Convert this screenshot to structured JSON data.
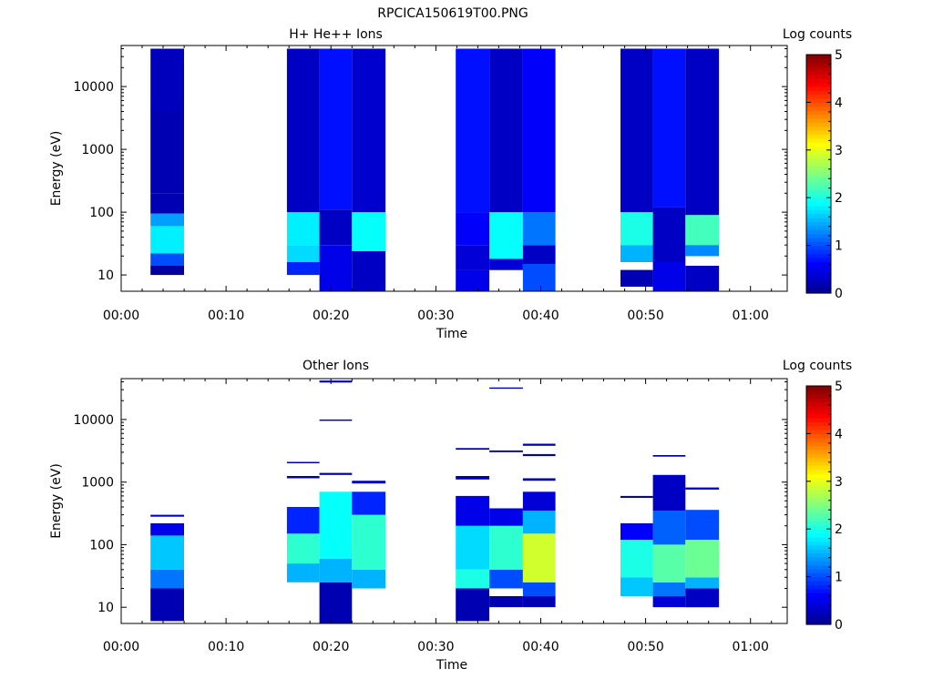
{
  "figure_title": "RPCICA150619T00.PNG",
  "colors": {
    "colormap": [
      "#00008f",
      "#0000ff",
      "#0080ff",
      "#00ffff",
      "#80ff80",
      "#ffff00",
      "#ff8000",
      "#ff0000",
      "#800000"
    ]
  },
  "chart_data": [
    {
      "type": "heatmap",
      "title": "H+ He++ Ions",
      "xlabel": "Time",
      "ylabel": "Energy (eV)",
      "x_ticks": [
        "00:00",
        "00:10",
        "00:20",
        "00:30",
        "00:40",
        "00:50",
        "01:00"
      ],
      "xlim_minutes": [
        0,
        63.5
      ],
      "yscale": "log",
      "ylim": [
        5.5,
        45000
      ],
      "y_ticks": [
        "10",
        "100",
        "1000",
        "10000"
      ],
      "colorbar": {
        "label": "Log counts",
        "range": [
          0,
          5
        ],
        "ticks": [
          "0",
          "1",
          "2",
          "3",
          "4",
          "5"
        ]
      },
      "columns": [
        {
          "t_start": 2.8,
          "t_end": 6.0,
          "bands": [
            {
              "e_min": 10,
              "e_max": 14,
              "log_counts": 0.1
            },
            {
              "e_min": 14,
              "e_max": 22,
              "log_counts": 1.0
            },
            {
              "e_min": 22,
              "e_max": 60,
              "log_counts": 1.8
            },
            {
              "e_min": 60,
              "e_max": 95,
              "log_counts": 1.4
            },
            {
              "e_min": 95,
              "e_max": 200,
              "log_counts": 0.2
            },
            {
              "e_min": 200,
              "e_max": 4000,
              "log_counts": 0.2
            },
            {
              "e_min": 4000,
              "e_max": 40000,
              "log_counts": 0.25
            }
          ]
        },
        {
          "t_start": 15.8,
          "t_end": 18.9,
          "bands": [
            {
              "e_min": 10,
              "e_max": 16,
              "log_counts": 0.8
            },
            {
              "e_min": 16,
              "e_max": 30,
              "log_counts": 1.7
            },
            {
              "e_min": 30,
              "e_max": 100,
              "log_counts": 1.8
            },
            {
              "e_min": 100,
              "e_max": 40000,
              "log_counts": 0.3
            }
          ]
        },
        {
          "t_start": 18.9,
          "t_end": 22.0,
          "bands": [
            {
              "e_min": 5.5,
              "e_max": 30,
              "log_counts": 0.5
            },
            {
              "e_min": 30,
              "e_max": 110,
              "log_counts": 0.3
            },
            {
              "e_min": 110,
              "e_max": 40000,
              "log_counts": 0.7
            }
          ]
        },
        {
          "t_start": 22.0,
          "t_end": 25.2,
          "bands": [
            {
              "e_min": 5.5,
              "e_max": 24,
              "log_counts": 0.3
            },
            {
              "e_min": 24,
              "e_max": 100,
              "log_counts": 1.9
            },
            {
              "e_min": 100,
              "e_max": 40000,
              "log_counts": 0.35
            }
          ]
        },
        {
          "t_start": 31.9,
          "t_end": 35.1,
          "bands": [
            {
              "e_min": 5.5,
              "e_max": 12,
              "log_counts": 0.5
            },
            {
              "e_min": 12,
              "e_max": 30,
              "log_counts": 0.4
            },
            {
              "e_min": 30,
              "e_max": 100,
              "log_counts": 0.6
            },
            {
              "e_min": 100,
              "e_max": 40000,
              "log_counts": 0.7
            }
          ]
        },
        {
          "t_start": 35.1,
          "t_end": 38.3,
          "bands": [
            {
              "e_min": 12,
              "e_max": 18,
              "log_counts": 0.4
            },
            {
              "e_min": 18,
              "e_max": 100,
              "log_counts": 1.9
            },
            {
              "e_min": 100,
              "e_max": 40000,
              "log_counts": 0.3
            }
          ]
        },
        {
          "t_start": 38.3,
          "t_end": 41.4,
          "bands": [
            {
              "e_min": 5.5,
              "e_max": 15,
              "log_counts": 1.0
            },
            {
              "e_min": 15,
              "e_max": 30,
              "log_counts": 0.3
            },
            {
              "e_min": 30,
              "e_max": 100,
              "log_counts": 1.2
            },
            {
              "e_min": 100,
              "e_max": 40000,
              "log_counts": 0.6
            }
          ]
        },
        {
          "t_start": 47.6,
          "t_end": 50.7,
          "bands": [
            {
              "e_min": 6.5,
              "e_max": 12,
              "log_counts": 0.2
            },
            {
              "e_min": 16,
              "e_max": 30,
              "log_counts": 1.5
            },
            {
              "e_min": 30,
              "e_max": 100,
              "log_counts": 2.0
            },
            {
              "e_min": 100,
              "e_max": 40000,
              "log_counts": 0.3
            }
          ]
        },
        {
          "t_start": 50.7,
          "t_end": 53.8,
          "bands": [
            {
              "e_min": 5.5,
              "e_max": 16,
              "log_counts": 0.5
            },
            {
              "e_min": 16,
              "e_max": 120,
              "log_counts": 0.3
            },
            {
              "e_min": 120,
              "e_max": 40000,
              "log_counts": 0.7
            }
          ]
        },
        {
          "t_start": 53.8,
          "t_end": 57.0,
          "bands": [
            {
              "e_min": 5.5,
              "e_max": 14,
              "log_counts": 0.3
            },
            {
              "e_min": 20,
              "e_max": 30,
              "log_counts": 1.3
            },
            {
              "e_min": 30,
              "e_max": 90,
              "log_counts": 2.2
            },
            {
              "e_min": 90,
              "e_max": 40000,
              "log_counts": 0.3
            }
          ]
        }
      ]
    },
    {
      "type": "heatmap",
      "title": "Other Ions",
      "xlabel": "Time",
      "ylabel": "Energy (eV)",
      "x_ticks": [
        "00:00",
        "00:10",
        "00:20",
        "00:30",
        "00:40",
        "00:50",
        "01:00"
      ],
      "xlim_minutes": [
        0,
        63.5
      ],
      "yscale": "log",
      "ylim": [
        5.5,
        45000
      ],
      "y_ticks": [
        "10",
        "100",
        "1000",
        "10000"
      ],
      "colorbar": {
        "label": "Log counts",
        "range": [
          0,
          5
        ],
        "ticks": [
          "0",
          "1",
          "2",
          "3",
          "4",
          "5"
        ]
      },
      "columns": [
        {
          "t_start": 2.8,
          "t_end": 6.0,
          "bands": [
            {
              "e_min": 6,
              "e_max": 20,
              "log_counts": 0.2
            },
            {
              "e_min": 20,
              "e_max": 40,
              "log_counts": 1.2
            },
            {
              "e_min": 40,
              "e_max": 140,
              "log_counts": 1.6
            },
            {
              "e_min": 140,
              "e_max": 220,
              "log_counts": 0.5
            },
            {
              "e_min": 280,
              "e_max": 300,
              "log_counts": 0.3
            }
          ]
        },
        {
          "t_start": 15.8,
          "t_end": 18.9,
          "bands": [
            {
              "e_min": 25,
              "e_max": 50,
              "log_counts": 1.5
            },
            {
              "e_min": 50,
              "e_max": 150,
              "log_counts": 2.1
            },
            {
              "e_min": 150,
              "e_max": 400,
              "log_counts": 0.8
            },
            {
              "e_min": 1150,
              "e_max": 1250,
              "log_counts": 0.2
            },
            {
              "e_min": 2000,
              "e_max": 2100,
              "log_counts": 0.2
            }
          ]
        },
        {
          "t_start": 18.9,
          "t_end": 22.0,
          "bands": [
            {
              "e_min": 5.5,
              "e_max": 25,
              "log_counts": 0.2
            },
            {
              "e_min": 25,
              "e_max": 60,
              "log_counts": 1.5
            },
            {
              "e_min": 60,
              "e_max": 700,
              "log_counts": 1.9
            },
            {
              "e_min": 1300,
              "e_max": 1400,
              "log_counts": 0.2
            },
            {
              "e_min": 9500,
              "e_max": 10000,
              "log_counts": 0.2
            },
            {
              "e_min": 39000,
              "e_max": 42000,
              "log_counts": 0.2
            }
          ]
        },
        {
          "t_start": 22.0,
          "t_end": 25.2,
          "bands": [
            {
              "e_min": 20,
              "e_max": 40,
              "log_counts": 1.5
            },
            {
              "e_min": 40,
              "e_max": 300,
              "log_counts": 2.1
            },
            {
              "e_min": 300,
              "e_max": 700,
              "log_counts": 0.8
            },
            {
              "e_min": 950,
              "e_max": 1050,
              "log_counts": 0.3
            }
          ]
        },
        {
          "t_start": 31.9,
          "t_end": 35.1,
          "bands": [
            {
              "e_min": 6,
              "e_max": 20,
              "log_counts": 0.2
            },
            {
              "e_min": 20,
              "e_max": 40,
              "log_counts": 2.0
            },
            {
              "e_min": 40,
              "e_max": 200,
              "log_counts": 1.7
            },
            {
              "e_min": 200,
              "e_max": 600,
              "log_counts": 0.5
            },
            {
              "e_min": 1100,
              "e_max": 1250,
              "log_counts": 0.2
            },
            {
              "e_min": 3300,
              "e_max": 3500,
              "log_counts": 0.2
            }
          ]
        },
        {
          "t_start": 35.1,
          "t_end": 38.3,
          "bands": [
            {
              "e_min": 10,
              "e_max": 15,
              "log_counts": 0.2
            },
            {
              "e_min": 20,
              "e_max": 40,
              "log_counts": 1.0
            },
            {
              "e_min": 40,
              "e_max": 200,
              "log_counts": 2.1
            },
            {
              "e_min": 200,
              "e_max": 380,
              "log_counts": 0.5
            },
            {
              "e_min": 3000,
              "e_max": 3200,
              "log_counts": 0.2
            },
            {
              "e_min": 31000,
              "e_max": 32500,
              "log_counts": 0.3
            }
          ]
        },
        {
          "t_start": 38.3,
          "t_end": 41.4,
          "bands": [
            {
              "e_min": 10,
              "e_max": 15,
              "log_counts": 0.2
            },
            {
              "e_min": 15,
              "e_max": 25,
              "log_counts": 1.0
            },
            {
              "e_min": 25,
              "e_max": 150,
              "log_counts": 2.9
            },
            {
              "e_min": 150,
              "e_max": 350,
              "log_counts": 1.5
            },
            {
              "e_min": 350,
              "e_max": 700,
              "log_counts": 0.4
            },
            {
              "e_min": 1050,
              "e_max": 1150,
              "log_counts": 0.2
            },
            {
              "e_min": 2600,
              "e_max": 2800,
              "log_counts": 0.2
            },
            {
              "e_min": 3800,
              "e_max": 4100,
              "log_counts": 0.2
            }
          ]
        },
        {
          "t_start": 47.6,
          "t_end": 50.7,
          "bands": [
            {
              "e_min": 15,
              "e_max": 30,
              "log_counts": 1.6
            },
            {
              "e_min": 30,
              "e_max": 120,
              "log_counts": 2.0
            },
            {
              "e_min": 120,
              "e_max": 220,
              "log_counts": 0.6
            },
            {
              "e_min": 560,
              "e_max": 600,
              "log_counts": 0.3
            }
          ]
        },
        {
          "t_start": 50.7,
          "t_end": 53.8,
          "bands": [
            {
              "e_min": 10,
              "e_max": 15,
              "log_counts": 0.4
            },
            {
              "e_min": 15,
              "e_max": 25,
              "log_counts": 1.2
            },
            {
              "e_min": 25,
              "e_max": 100,
              "log_counts": 2.3
            },
            {
              "e_min": 100,
              "e_max": 350,
              "log_counts": 1.1
            },
            {
              "e_min": 350,
              "e_max": 1300,
              "log_counts": 0.3
            },
            {
              "e_min": 2550,
              "e_max": 2700,
              "log_counts": 0.2
            }
          ]
        },
        {
          "t_start": 53.8,
          "t_end": 57.0,
          "bands": [
            {
              "e_min": 10,
              "e_max": 20,
              "log_counts": 0.3
            },
            {
              "e_min": 20,
              "e_max": 30,
              "log_counts": 1.5
            },
            {
              "e_min": 30,
              "e_max": 120,
              "log_counts": 2.4
            },
            {
              "e_min": 120,
              "e_max": 360,
              "log_counts": 1.0
            },
            {
              "e_min": 760,
              "e_max": 820,
              "log_counts": 0.3
            }
          ]
        }
      ]
    }
  ]
}
